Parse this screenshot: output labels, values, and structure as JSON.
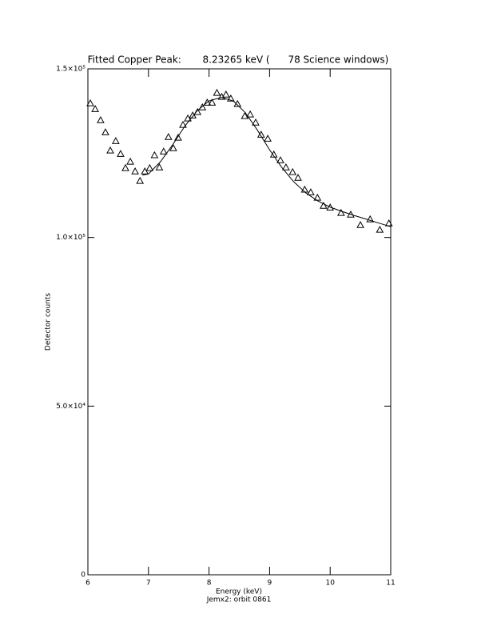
{
  "chart_data": {
    "type": "scatter",
    "title": "Fitted Copper Peak:       8.23265 keV (      78 Science windows)",
    "x_label": "Energy (keV)",
    "subtitle": "Jemx2: orbit 0861",
    "y_label": "Detector counts",
    "xlim": [
      6,
      11
    ],
    "ylim": [
      0,
      150000
    ],
    "xticks": [
      6,
      7,
      8,
      9,
      10,
      11
    ],
    "yticks": [
      0,
      {
        "value": 50000,
        "label": "5.0×10⁴"
      },
      {
        "value": 100000,
        "label": "1.0×10⁵"
      },
      {
        "value": 150000,
        "label": "1.5×10⁵"
      }
    ],
    "series": [
      {
        "type": "scatter",
        "marker": "triangle",
        "color": "#000000",
        "x": [
          6.04,
          6.12,
          6.21,
          6.29,
          6.37,
          6.46,
          6.54,
          6.62,
          6.7,
          6.78,
          6.86,
          6.94,
          7.02,
          7.1,
          7.18,
          7.25,
          7.33,
          7.41,
          7.49,
          7.57,
          7.65,
          7.73,
          7.81,
          7.89,
          7.97,
          8.05,
          8.13,
          8.21,
          8.28,
          8.36,
          8.47,
          8.59,
          8.68,
          8.77,
          8.86,
          8.97,
          9.07,
          9.18,
          9.27,
          9.38,
          9.47,
          9.58,
          9.68,
          9.79,
          9.89,
          10.0,
          10.18,
          10.34,
          10.5,
          10.66,
          10.82,
          10.97
        ],
        "values": [
          139800,
          138100,
          134800,
          131200,
          125800,
          128600,
          124800,
          120600,
          122500,
          119600,
          116800,
          119600,
          120600,
          124400,
          120800,
          125500,
          129800,
          126500,
          129600,
          133400,
          135300,
          136200,
          137200,
          138600,
          140000,
          140000,
          142900,
          141700,
          142400,
          141200,
          139600,
          136000,
          136500,
          134100,
          130500,
          129300,
          124600,
          122900,
          120800,
          119400,
          117700,
          114200,
          113400,
          111800,
          109400,
          108900,
          107300,
          106800,
          103700,
          105400,
          102300,
          104200
        ]
      },
      {
        "type": "line",
        "color": "#000000",
        "x": [
          6.9,
          7.0,
          7.2,
          7.4,
          7.6,
          7.8,
          8.0,
          8.2,
          8.4,
          8.6,
          8.8,
          9.0,
          9.2,
          9.4,
          9.6,
          9.8,
          10.0,
          10.2,
          10.4,
          10.6,
          10.8,
          11.0
        ],
        "values": [
          118500,
          118800,
          122500,
          127500,
          133000,
          137500,
          140500,
          141500,
          140500,
          137000,
          131800,
          126000,
          120800,
          116500,
          113200,
          110800,
          109000,
          107700,
          106500,
          105400,
          104300,
          103200
        ]
      }
    ]
  }
}
